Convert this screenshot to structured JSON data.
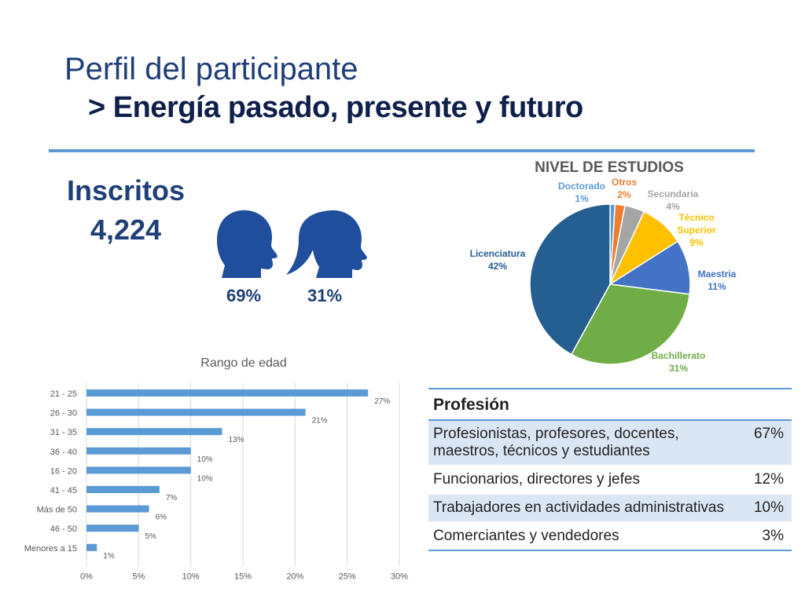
{
  "header": {
    "title": "Perfil del participante",
    "subtitle": "> Energía pasado, presente y futuro"
  },
  "enrollment": {
    "label": "Inscritos",
    "value": "4,224",
    "male_pct": "69%",
    "female_pct": "31%"
  },
  "colors": {
    "title": "#1f3f78",
    "rule": "#5b9bd5",
    "bar": "#5b9bd5",
    "icon": "#1f4e9c"
  },
  "icons": [
    "male-head-icon",
    "female-head-icon"
  ],
  "chart_data": [
    {
      "type": "pie",
      "title": "NIVEL DE ESTUDIOS",
      "categories": [
        "Doctorado",
        "Otros",
        "Secundaria",
        "Técnico Superior",
        "Maestria",
        "Bachillerato",
        "Licenciatura"
      ],
      "values": [
        1,
        2,
        4,
        9,
        11,
        31,
        42
      ],
      "labels": [
        {
          "name": "Doctorado",
          "value": "1%",
          "color": "#5b9bd5"
        },
        {
          "name": "Otros",
          "value": "2%",
          "color": "#ed7d31"
        },
        {
          "name": "Secundaria",
          "value": "4%",
          "color": "#a5a5a5"
        },
        {
          "name": "Técnico Superior",
          "value": "9%",
          "color": "#ffc000"
        },
        {
          "name": "Maestria",
          "value": "11%",
          "color": "#4472c4"
        },
        {
          "name": "Bachillerato",
          "value": "31%",
          "color": "#70ad47"
        },
        {
          "name": "Licenciatura",
          "value": "42%",
          "color": "#255e91"
        }
      ]
    },
    {
      "type": "bar",
      "orientation": "horizontal",
      "title": "Rango de edad",
      "categories": [
        "21 - 25",
        "26 - 30",
        "31 - 35",
        "36 - 40",
        "16 - 20",
        "41 - 45",
        "Más de 50",
        "46 - 50",
        "Menores a 15"
      ],
      "values": [
        27,
        21,
        13,
        10,
        10,
        7,
        6,
        5,
        1
      ],
      "value_labels": [
        "27%",
        "21%",
        "13%",
        "10%",
        "10%",
        "7%",
        "6%",
        "5%",
        "1%"
      ],
      "xlim": [
        0,
        30
      ],
      "x_ticks": [
        "0%",
        "5%",
        "10%",
        "15%",
        "20%",
        "25%",
        "30%"
      ],
      "grid": true
    }
  ],
  "profession_table": {
    "header": "Profesión",
    "rows": [
      {
        "label": "Profesionistas, profesores, docentes, maestros, técnicos y estudiantes",
        "value": "67%"
      },
      {
        "label": "Funcionarios, directores y jefes",
        "value": "12%"
      },
      {
        "label": "Trabajadores en actividades administrativas",
        "value": "10%"
      },
      {
        "label": "Comerciantes y vendedores",
        "value": "3%"
      }
    ]
  }
}
